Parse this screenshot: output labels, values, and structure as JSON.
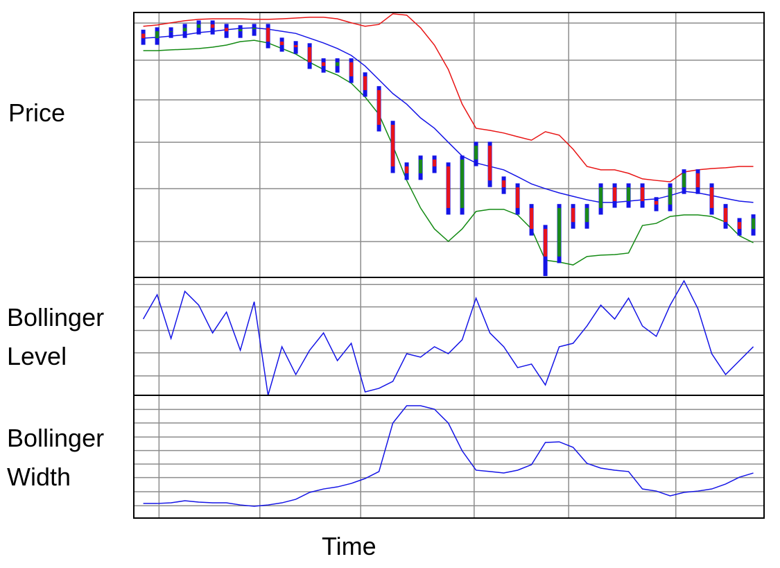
{
  "chart_data": [
    {
      "type": "candlestick",
      "ylabel": "Price",
      "x": [
        1.5,
        3.7,
        5.9,
        8.1,
        10.3,
        12.5,
        14.7,
        16.9,
        19.1,
        21.3,
        23.5,
        25.7,
        27.9,
        30.1,
        32.3,
        34.5,
        36.7,
        38.9,
        41.1,
        43.3,
        45.5,
        47.7,
        49.9,
        52.1,
        54.3,
        56.5,
        58.7,
        60.9,
        63.1,
        65.3,
        67.5,
        69.7,
        71.9,
        74.1,
        76.3,
        78.5,
        80.7,
        82.9,
        85.1,
        87.3,
        89.5,
        91.7,
        93.9,
        96.1,
        98.3
      ],
      "open": [
        92.0,
        90.3,
        92.9,
        92.9,
        94.2,
        95.5,
        94.2,
        92.9,
        93.7,
        94.2,
        89.0,
        87.7,
        86.9,
        81.2,
        79.8,
        81.2,
        75.9,
        70.7,
        57.6,
        41.9,
        39.3,
        44.5,
        41.9,
        26.2,
        44.5,
        49.7,
        36.6,
        34.0,
        26.2,
        18.3,
        7.9,
        26.2,
        20.9,
        26.2,
        34.0,
        28.8,
        34.0,
        28.8,
        27.5,
        34.0,
        39.3,
        34.0,
        26.2,
        20.9,
        18.3
      ],
      "high": [
        93.5,
        94.4,
        94.4,
        95.7,
        97.0,
        97.0,
        95.7,
        95.2,
        95.7,
        95.7,
        90.5,
        89.2,
        88.4,
        82.7,
        82.7,
        82.7,
        77.4,
        72.2,
        59.1,
        43.4,
        46.0,
        46.0,
        43.4,
        46.0,
        51.2,
        51.2,
        38.1,
        35.5,
        27.7,
        19.8,
        27.7,
        27.7,
        27.7,
        35.5,
        35.5,
        35.5,
        35.5,
        30.3,
        35.5,
        40.8,
        40.8,
        35.5,
        27.7,
        22.4,
        23.8
      ],
      "low": [
        87.8,
        87.8,
        90.4,
        90.4,
        91.7,
        91.7,
        90.4,
        90.4,
        91.2,
        86.5,
        85.2,
        84.4,
        78.7,
        77.3,
        77.3,
        73.4,
        68.2,
        55.1,
        39.4,
        36.8,
        36.8,
        39.4,
        23.7,
        23.7,
        42.0,
        34.1,
        31.5,
        23.7,
        15.8,
        0.5,
        5.4,
        18.4,
        18.4,
        23.7,
        26.3,
        26.3,
        26.3,
        25.0,
        25.0,
        31.5,
        31.5,
        23.7,
        18.4,
        15.8,
        15.8
      ],
      "close": [
        90.3,
        92.9,
        92.9,
        94.2,
        95.5,
        94.2,
        92.9,
        93.7,
        94.2,
        89.0,
        87.7,
        86.9,
        81.2,
        79.8,
        81.2,
        75.9,
        70.7,
        57.6,
        41.9,
        39.3,
        44.5,
        41.9,
        26.2,
        44.5,
        49.7,
        36.6,
        34.0,
        26.2,
        18.3,
        7.9,
        26.2,
        20.9,
        26.2,
        34.0,
        28.8,
        34.0,
        28.8,
        27.5,
        34.0,
        39.3,
        34.0,
        26.2,
        20.9,
        18.3,
        22.3
      ],
      "up_color": "#1a8a1a",
      "down_color": "#e8141c",
      "wick_color": "#1414e6",
      "series": [
        {
          "color": "#e81414",
          "values": [
            94.8,
            95.3,
            96.1,
            96.9,
            97.4,
            97.6,
            97.6,
            97.6,
            97.4,
            97.4,
            97.6,
            97.9,
            98.2,
            98.2,
            97.6,
            96.1,
            94.8,
            95.5,
            99.5,
            99.0,
            94.2,
            87.7,
            78.5,
            65.4,
            56.3,
            55.5,
            54.5,
            53.1,
            51.8,
            55.0,
            53.7,
            48.4,
            41.9,
            40.6,
            40.6,
            39.3,
            37.2,
            36.6,
            36.1,
            39.8,
            40.6,
            41.1,
            41.4,
            41.9,
            41.9
          ]
        },
        {
          "color": "#1414e6",
          "values": [
            90.3,
            90.6,
            91.1,
            91.6,
            92.4,
            92.9,
            93.5,
            94.0,
            94.2,
            93.7,
            92.9,
            92.1,
            90.3,
            88.5,
            86.4,
            83.8,
            79.8,
            74.6,
            69.4,
            65.4,
            60.2,
            56.3,
            51.0,
            45.8,
            43.2,
            41.9,
            40.6,
            38.0,
            35.3,
            33.5,
            31.9,
            30.6,
            29.3,
            28.3,
            28.3,
            28.8,
            29.3,
            29.6,
            30.9,
            32.5,
            31.9,
            30.9,
            29.8,
            28.8,
            28.3
          ]
        },
        {
          "color": "#138a13",
          "values": [
            85.6,
            85.6,
            85.9,
            86.1,
            86.4,
            86.9,
            87.7,
            89.0,
            89.5,
            88.5,
            86.4,
            84.3,
            81.2,
            78.5,
            76.4,
            73.3,
            68.1,
            61.5,
            49.7,
            36.6,
            26.2,
            18.3,
            13.6,
            18.3,
            24.9,
            25.7,
            25.7,
            23.6,
            18.3,
            6.5,
            5.8,
            4.7,
            7.9,
            8.4,
            8.6,
            9.2,
            19.6,
            20.4,
            23.0,
            23.6,
            23.6,
            23.0,
            20.9,
            15.7,
            13.1
          ]
        }
      ],
      "xlim": [
        0,
        100
      ],
      "xticks": [
        4,
        20,
        36,
        54,
        69,
        86
      ],
      "ylim": [
        0,
        100
      ],
      "yticks": [
        96,
        82,
        67,
        51,
        33.5,
        13.5
      ],
      "grid": true
    },
    {
      "type": "line",
      "ylabel": "Bollinger Level",
      "x": [
        1.5,
        3.7,
        5.9,
        8.1,
        10.3,
        12.5,
        14.7,
        16.9,
        19.1,
        21.3,
        23.5,
        25.7,
        27.9,
        30.1,
        32.3,
        34.5,
        36.7,
        38.9,
        41.1,
        43.3,
        45.5,
        47.7,
        49.9,
        52.1,
        54.3,
        56.5,
        58.7,
        60.9,
        63.1,
        65.3,
        67.5,
        69.7,
        71.9,
        74.1,
        76.3,
        78.5,
        80.7,
        82.9,
        85.1,
        87.3,
        89.5,
        91.7,
        93.9,
        96.1,
        98.3
      ],
      "series": [
        {
          "color": "#1414e6",
          "values": [
            64.7,
            85.3,
            48.2,
            88.2,
            76.5,
            52.9,
            70.6,
            38.2,
            79.4,
            0,
            41.2,
            17.6,
            38.2,
            52.9,
            29.4,
            44.1,
            2.9,
            5.9,
            11.8,
            35.3,
            32.4,
            41.2,
            35.3,
            47.1,
            82.4,
            52.9,
            41.2,
            23.5,
            26.5,
            8.8,
            41.2,
            44.1,
            58.8,
            76.5,
            64.7,
            82.4,
            58.8,
            50.0,
            76.5,
            97.1,
            73.5,
            35.3,
            17.6,
            29.4,
            41.2
          ]
        }
      ],
      "xlim": [
        0,
        100
      ],
      "xticks": [
        4,
        20,
        36,
        54,
        69,
        86
      ],
      "ylim": [
        0,
        100
      ],
      "yticks": [
        94,
        75,
        55,
        36,
        16.5
      ],
      "grid": true
    },
    {
      "type": "line",
      "ylabel": "Bollinger Width",
      "xlabel": "Time",
      "x": [
        1.5,
        3.7,
        5.9,
        8.1,
        10.3,
        12.5,
        14.7,
        16.9,
        19.1,
        21.3,
        23.5,
        25.7,
        27.9,
        30.1,
        32.3,
        34.5,
        36.7,
        38.9,
        41.1,
        43.3,
        45.5,
        47.7,
        49.9,
        52.1,
        54.3,
        56.5,
        58.7,
        60.9,
        63.1,
        65.3,
        67.5,
        69.7,
        71.9,
        74.1,
        76.3,
        78.5,
        80.7,
        82.9,
        85.1,
        87.3,
        89.5,
        91.7,
        93.9,
        96.1,
        98.3
      ],
      "series": [
        {
          "color": "#1414e6",
          "values": [
            11.9,
            11.9,
            12.4,
            14.1,
            13.0,
            12.4,
            12.4,
            10.7,
            9.6,
            10.7,
            12.4,
            15.3,
            20.9,
            23.7,
            25.4,
            28.2,
            32.2,
            37.9,
            77.4,
            91.5,
            91.5,
            88.7,
            77.4,
            54.8,
            39.0,
            37.9,
            36.7,
            39.0,
            43.5,
            61.6,
            62.1,
            57.6,
            44.6,
            40.7,
            39.0,
            37.9,
            23.7,
            22.0,
            18.1,
            20.9,
            22.0,
            23.7,
            27.7,
            33.3,
            36.7
          ]
        }
      ],
      "xlim": [
        0,
        100
      ],
      "xticks": [
        4,
        20,
        36,
        54,
        69,
        86
      ],
      "ylim": [
        0,
        100
      ],
      "yticks": [
        10,
        21.5,
        33,
        44,
        55,
        66,
        77.5,
        88.5
      ],
      "grid": true
    }
  ]
}
